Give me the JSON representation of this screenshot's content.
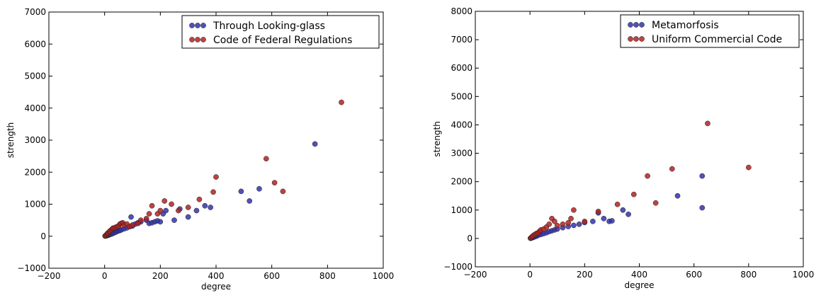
{
  "chart_data": [
    {
      "type": "scatter",
      "xlabel": "degree",
      "ylabel": "strength",
      "xlim": [
        -200,
        1000
      ],
      "ylim": [
        -1000,
        7000
      ],
      "xticks": [
        -200,
        0,
        200,
        400,
        600,
        800,
        1000
      ],
      "yticks": [
        -1000,
        0,
        1000,
        2000,
        3000,
        4000,
        5000,
        6000,
        7000
      ],
      "legend_position": "top-right",
      "series": [
        {
          "name": "Through Looking-glass",
          "color": "#3333aa",
          "points": [
            [
              2,
              5
            ],
            [
              4,
              10
            ],
            [
              6,
              15
            ],
            [
              8,
              20
            ],
            [
              10,
              25
            ],
            [
              12,
              30
            ],
            [
              15,
              40
            ],
            [
              18,
              50
            ],
            [
              20,
              60
            ],
            [
              25,
              70
            ],
            [
              30,
              90
            ],
            [
              35,
              110
            ],
            [
              40,
              130
            ],
            [
              45,
              150
            ],
            [
              50,
              170
            ],
            [
              55,
              180
            ],
            [
              60,
              200
            ],
            [
              70,
              230
            ],
            [
              80,
              260
            ],
            [
              90,
              300
            ],
            [
              95,
              600
            ],
            [
              100,
              320
            ],
            [
              110,
              380
            ],
            [
              120,
              420
            ],
            [
              130,
              450
            ],
            [
              150,
              500
            ],
            [
              160,
              400
            ],
            [
              170,
              420
            ],
            [
              180,
              450
            ],
            [
              190,
              480
            ],
            [
              200,
              450
            ],
            [
              210,
              700
            ],
            [
              220,
              800
            ],
            [
              250,
              500
            ],
            [
              270,
              850
            ],
            [
              300,
              600
            ],
            [
              330,
              800
            ],
            [
              360,
              950
            ],
            [
              380,
              900
            ],
            [
              490,
              1400
            ],
            [
              520,
              1100
            ],
            [
              555,
              1480
            ],
            [
              755,
              2880
            ]
          ]
        },
        {
          "name": "Code of Federal Regulations",
          "color": "#b22222",
          "points": [
            [
              2,
              10
            ],
            [
              5,
              30
            ],
            [
              8,
              60
            ],
            [
              10,
              80
            ],
            [
              12,
              100
            ],
            [
              15,
              120
            ],
            [
              18,
              150
            ],
            [
              20,
              170
            ],
            [
              25,
              200
            ],
            [
              28,
              230
            ],
            [
              30,
              250
            ],
            [
              35,
              260
            ],
            [
              40,
              280
            ],
            [
              45,
              300
            ],
            [
              50,
              320
            ],
            [
              55,
              380
            ],
            [
              60,
              400
            ],
            [
              65,
              420
            ],
            [
              70,
              350
            ],
            [
              80,
              380
            ],
            [
              90,
              300
            ],
            [
              100,
              350
            ],
            [
              120,
              400
            ],
            [
              130,
              500
            ],
            [
              150,
              550
            ],
            [
              160,
              700
            ],
            [
              170,
              950
            ],
            [
              190,
              700
            ],
            [
              200,
              800
            ],
            [
              215,
              1100
            ],
            [
              240,
              1000
            ],
            [
              265,
              800
            ],
            [
              300,
              900
            ],
            [
              340,
              1150
            ],
            [
              390,
              1380
            ],
            [
              400,
              1850
            ],
            [
              580,
              2420
            ],
            [
              610,
              1670
            ],
            [
              640,
              1400
            ],
            [
              850,
              4180
            ]
          ]
        }
      ]
    },
    {
      "type": "scatter",
      "xlabel": "degree",
      "ylabel": "strength",
      "xlim": [
        -200,
        1000
      ],
      "ylim": [
        -1000,
        8000
      ],
      "xticks": [
        -200,
        0,
        200,
        400,
        600,
        800,
        1000
      ],
      "yticks": [
        -1000,
        0,
        1000,
        2000,
        3000,
        4000,
        5000,
        6000,
        7000,
        8000
      ],
      "legend_position": "top-right",
      "series": [
        {
          "name": "Metamorfosis",
          "color": "#3333aa",
          "points": [
            [
              2,
              5
            ],
            [
              5,
              15
            ],
            [
              8,
              25
            ],
            [
              10,
              35
            ],
            [
              15,
              50
            ],
            [
              20,
              70
            ],
            [
              25,
              90
            ],
            [
              30,
              110
            ],
            [
              40,
              140
            ],
            [
              50,
              170
            ],
            [
              60,
              200
            ],
            [
              70,
              240
            ],
            [
              80,
              270
            ],
            [
              90,
              300
            ],
            [
              100,
              330
            ],
            [
              120,
              380
            ],
            [
              140,
              420
            ],
            [
              160,
              460
            ],
            [
              180,
              500
            ],
            [
              200,
              560
            ],
            [
              230,
              600
            ],
            [
              250,
              900
            ],
            [
              270,
              700
            ],
            [
              290,
              600
            ],
            [
              300,
              620
            ],
            [
              340,
              1000
            ],
            [
              360,
              850
            ],
            [
              540,
              1500
            ],
            [
              630,
              2200
            ],
            [
              630,
              1080
            ]
          ]
        },
        {
          "name": "Uniform Commercial Code",
          "color": "#b22222",
          "points": [
            [
              2,
              10
            ],
            [
              5,
              30
            ],
            [
              8,
              60
            ],
            [
              10,
              80
            ],
            [
              15,
              120
            ],
            [
              20,
              150
            ],
            [
              25,
              180
            ],
            [
              30,
              200
            ],
            [
              35,
              250
            ],
            [
              40,
              300
            ],
            [
              50,
              330
            ],
            [
              60,
              400
            ],
            [
              70,
              500
            ],
            [
              80,
              700
            ],
            [
              90,
              600
            ],
            [
              100,
              450
            ],
            [
              120,
              500
            ],
            [
              140,
              550
            ],
            [
              150,
              700
            ],
            [
              160,
              1000
            ],
            [
              200,
              600
            ],
            [
              250,
              950
            ],
            [
              320,
              1200
            ],
            [
              380,
              1550
            ],
            [
              430,
              2200
            ],
            [
              460,
              1250
            ],
            [
              520,
              2450
            ],
            [
              650,
              4050
            ],
            [
              800,
              2500
            ]
          ]
        }
      ]
    }
  ]
}
